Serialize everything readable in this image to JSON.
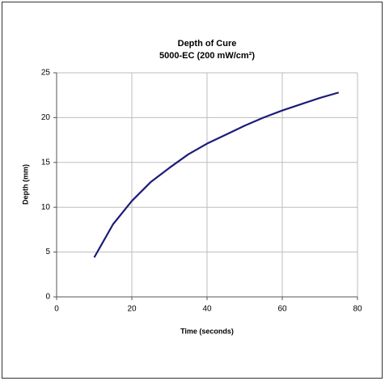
{
  "chart_data": {
    "type": "line",
    "title": [
      "Depth of Cure",
      "5000-EC (200 mW/cm²)"
    ],
    "x_label": "Time (seconds)",
    "y_label": "Depth (mm)",
    "x": [
      10,
      15,
      20,
      25,
      30,
      35,
      40,
      45,
      50,
      55,
      60,
      65,
      70,
      75
    ],
    "series": [
      {
        "name": "Depth",
        "color": "#1c1c78",
        "values": [
          4.4,
          8.1,
          10.7,
          12.8,
          14.4,
          15.9,
          17.1,
          18.1,
          19.1,
          20.0,
          20.8,
          21.5,
          22.2,
          22.8
        ]
      }
    ],
    "xlim": [
      0,
      80
    ],
    "xticks": [
      0,
      20,
      40,
      60,
      80
    ],
    "ylim": [
      0,
      25
    ],
    "yticks": [
      0,
      5,
      10,
      15,
      20,
      25
    ],
    "grid": true
  }
}
